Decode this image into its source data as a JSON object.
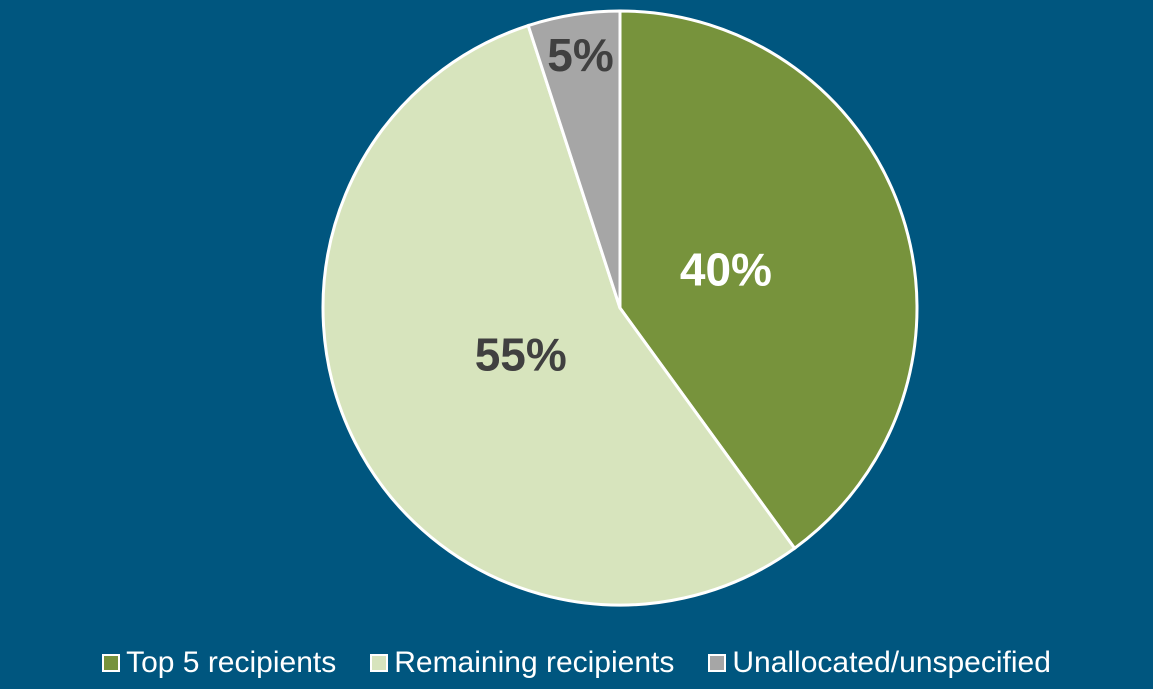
{
  "chart_data": {
    "type": "pie",
    "categories": [
      "Top 5 recipients",
      "Remaining recipients",
      "Unallocated/unspecified"
    ],
    "values": [
      40,
      55,
      5
    ],
    "value_labels": [
      "40%",
      "55%",
      "5%"
    ],
    "colors": [
      "#77933c",
      "#d7e4bd",
      "#a6a6a6"
    ],
    "label_colors": [
      "#ffffff",
      "#404040",
      "#404040"
    ],
    "legend": "bottom"
  }
}
